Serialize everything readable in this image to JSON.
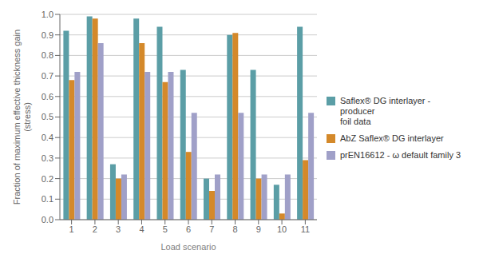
{
  "chart_data": {
    "type": "bar",
    "categories": [
      "1",
      "2",
      "3",
      "4",
      "5",
      "6",
      "7",
      "8",
      "9",
      "10",
      "11"
    ],
    "series": [
      {
        "name": "Saflex® DG interlayer - producer\nfoil data",
        "color": "#5B9EA6",
        "values": [
          0.92,
          0.99,
          0.27,
          0.98,
          0.94,
          0.73,
          0.2,
          0.9,
          0.73,
          0.17,
          0.94
        ]
      },
      {
        "name": "AbZ Saflex® DG interlayer",
        "color": "#D4892A",
        "values": [
          0.68,
          0.98,
          0.2,
          0.86,
          0.67,
          0.33,
          0.14,
          0.91,
          0.2,
          0.03,
          0.29
        ]
      },
      {
        "name": "prEN16612 - ω default family 3",
        "color": "#A0A0C8",
        "values": [
          0.72,
          0.86,
          0.22,
          0.72,
          0.72,
          0.52,
          0.22,
          0.52,
          0.22,
          0.22,
          0.52
        ]
      }
    ],
    "xlabel": "Load scenario",
    "ylabel": "Fraction of maximum effective thickness gain\n(stress)",
    "ylim": [
      0.0,
      1.0
    ],
    "yticks": [
      {
        "value": 0,
        "label": "0.0"
      },
      0.1,
      0.2,
      0.3,
      0.4,
      0.5,
      0.6,
      0.7,
      0.8,
      0.9,
      {
        "value": 1,
        "label": "1.0"
      }
    ],
    "grid": true,
    "legend": "right"
  }
}
